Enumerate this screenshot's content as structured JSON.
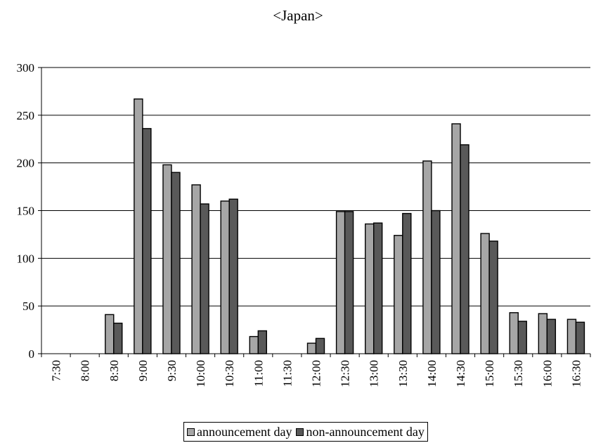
{
  "chart_data": {
    "type": "bar",
    "title": "<Japan>",
    "categories": [
      "7:30",
      "8:00",
      "8:30",
      "9:00",
      "9:30",
      "10:00",
      "10:30",
      "11:00",
      "11:30",
      "12:00",
      "12:30",
      "13:00",
      "13:30",
      "14:00",
      "14:30",
      "15:00",
      "15:30",
      "16:00",
      "16:30"
    ],
    "series": [
      {
        "name": "announcement day",
        "color": "#a6a6a6",
        "values": [
          0,
          0,
          41,
          267,
          198,
          177,
          160,
          18,
          0,
          11,
          149,
          136,
          124,
          202,
          241,
          126,
          43,
          42,
          36
        ]
      },
      {
        "name": "non-announcement day",
        "color": "#595959",
        "values": [
          0,
          0,
          32,
          236,
          190,
          157,
          162,
          24,
          0,
          16,
          149,
          137,
          147,
          150,
          219,
          118,
          34,
          36,
          33
        ]
      }
    ],
    "ylim": [
      0,
      300
    ],
    "yticks": [
      0,
      50,
      100,
      150,
      200,
      250,
      300
    ],
    "grid": true,
    "legend": "bottom"
  }
}
